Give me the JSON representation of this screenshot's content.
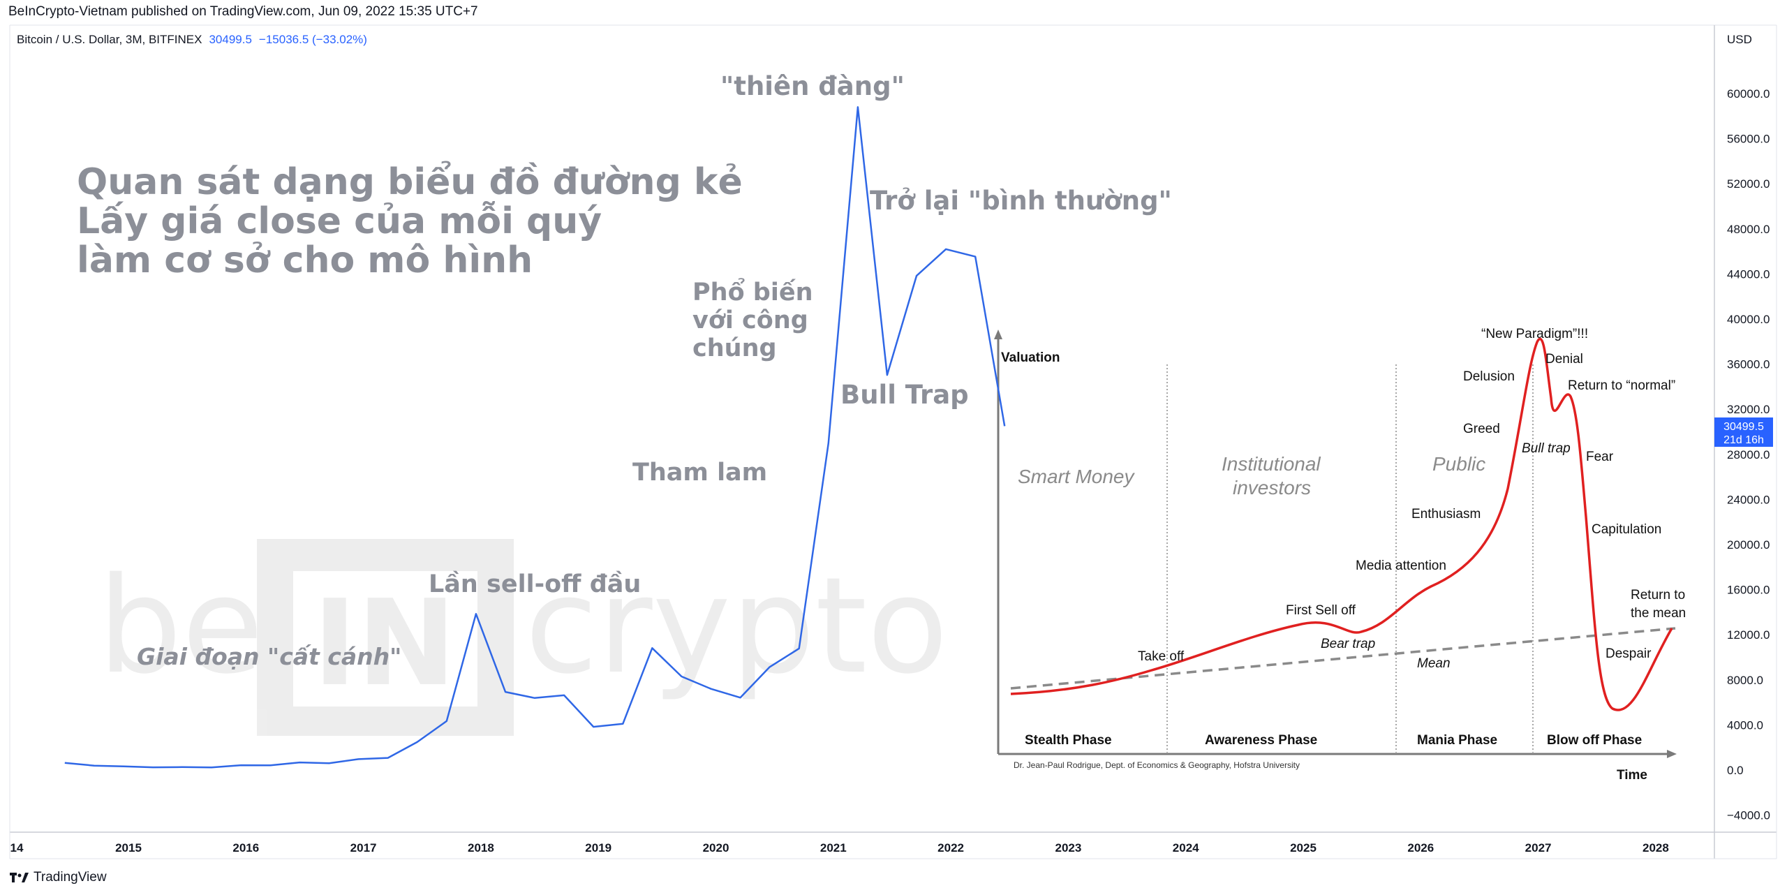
{
  "header": {
    "published_line": "BeInCrypto-Vietnam published on TradingView.com, Jun 09, 2022 15:35 UTC+7",
    "symbol": "Bitcoin / U.S. Dollar, 3M, BITFINEX",
    "last_value": "30499.5",
    "change": "−15036.5 (−33.02%)"
  },
  "price_axis": {
    "currency": "USD",
    "last_price_tag": "30499.5",
    "countdown_tag": "21d 16h",
    "tag_color": "#2962ff"
  },
  "footer": {
    "brand": "TradingView",
    "icon": "tradingview-logo-icon"
  },
  "watermark": {
    "text": "be[IN]crypto"
  },
  "annotations": {
    "main_title_lines": [
      "Quan sát dạng biểu đồ đường kẻ",
      "Lấy giá close của mỗi quý",
      "làm cơ sở cho mô hình"
    ],
    "takeoff": "Giai đoạn \"cất cánh\"",
    "first_selloff": "Lần sell-off đầu",
    "greed": "Tham lam",
    "public_lines": [
      "Phổ biến",
      "với công",
      "chúng"
    ],
    "heaven": "\"thiên đàng\"",
    "return_normal": "Trở lại \"bình thường\"",
    "bull_trap": "Bull Trap"
  },
  "inset": {
    "y_axis_label": "Valuation",
    "x_axis_label": "Time",
    "groups": [
      "Smart Money",
      "Institutional\ninvestors",
      "Public"
    ],
    "phases": [
      "Stealth Phase",
      "Awareness Phase",
      "Mania Phase",
      "Blow off Phase"
    ],
    "labels": {
      "take_off": "Take off",
      "first_sell_off": "First Sell off",
      "bear_trap": "Bear trap",
      "mean": "Mean",
      "media_attention": "Media attention",
      "enthusiasm": "Enthusiasm",
      "greed": "Greed",
      "delusion": "Delusion",
      "new_paradigm": "“New Paradigm”!!!",
      "denial": "Denial",
      "bull_trap": "Bull trap",
      "return_normal": "Return to “normal”",
      "fear": "Fear",
      "capitulation": "Capitulation",
      "return_mean_1": "Return to",
      "return_mean_2": "the mean",
      "despair": "Despair"
    },
    "credit": "Dr. Jean-Paul Rodrigue, Dept. of Economics & Geography, Hofstra University",
    "curve_color": "#e02020",
    "mean_line_color": "#8a8a8a"
  },
  "chart_data": {
    "type": "line",
    "title": "",
    "series": [
      {
        "values": [
          {
            "x": "2014-06",
            "y": 640
          },
          {
            "x": "2014-09",
            "y": 387
          },
          {
            "x": "2014-12",
            "y": 320
          },
          {
            "x": "2015-03",
            "y": 244
          },
          {
            "x": "2015-06",
            "y": 263
          },
          {
            "x": "2015-09",
            "y": 236
          },
          {
            "x": "2015-12",
            "y": 430
          },
          {
            "x": "2016-03",
            "y": 416
          },
          {
            "x": "2016-06",
            "y": 673
          },
          {
            "x": "2016-09",
            "y": 609
          },
          {
            "x": "2016-12",
            "y": 966
          },
          {
            "x": "2017-03",
            "y": 1080
          },
          {
            "x": "2017-06",
            "y": 2480
          },
          {
            "x": "2017-09",
            "y": 4340
          },
          {
            "x": "2017-12",
            "y": 13850
          },
          {
            "x": "2018-03",
            "y": 6930
          },
          {
            "x": "2018-06",
            "y": 6390
          },
          {
            "x": "2018-09",
            "y": 6630
          },
          {
            "x": "2018-12",
            "y": 3830
          },
          {
            "x": "2019-03",
            "y": 4100
          },
          {
            "x": "2019-06",
            "y": 10820
          },
          {
            "x": "2019-09",
            "y": 8300
          },
          {
            "x": "2019-12",
            "y": 7200
          },
          {
            "x": "2020-03",
            "y": 6420
          },
          {
            "x": "2020-06",
            "y": 9140
          },
          {
            "x": "2020-09",
            "y": 10780
          },
          {
            "x": "2020-12",
            "y": 28990
          },
          {
            "x": "2021-03",
            "y": 58800
          },
          {
            "x": "2021-06",
            "y": 35040
          },
          {
            "x": "2021-09",
            "y": 43830
          },
          {
            "x": "2021-12",
            "y": 46200
          },
          {
            "x": "2022-03",
            "y": 45536
          },
          {
            "x": "2022-06",
            "y": 30499.5
          }
        ],
        "color": "#2f67e6"
      }
    ],
    "x_ticks": [
      "14",
      "2015",
      "2016",
      "2017",
      "2018",
      "2019",
      "2020",
      "2021",
      "2022",
      "2023",
      "2024",
      "2025",
      "2026",
      "2027",
      "2028"
    ],
    "y_ticks": [
      "−4000.0",
      "0.0",
      "4000.0",
      "8000.0",
      "12000.0",
      "16000.0",
      "20000.0",
      "24000.0",
      "28000.0",
      "32000.0",
      "36000.0",
      "40000.0",
      "44000.0",
      "48000.0",
      "52000.0",
      "56000.0",
      "60000.0"
    ],
    "ylim": [
      -4000,
      64000
    ],
    "xlabel": "",
    "ylabel": "",
    "grid": false
  }
}
